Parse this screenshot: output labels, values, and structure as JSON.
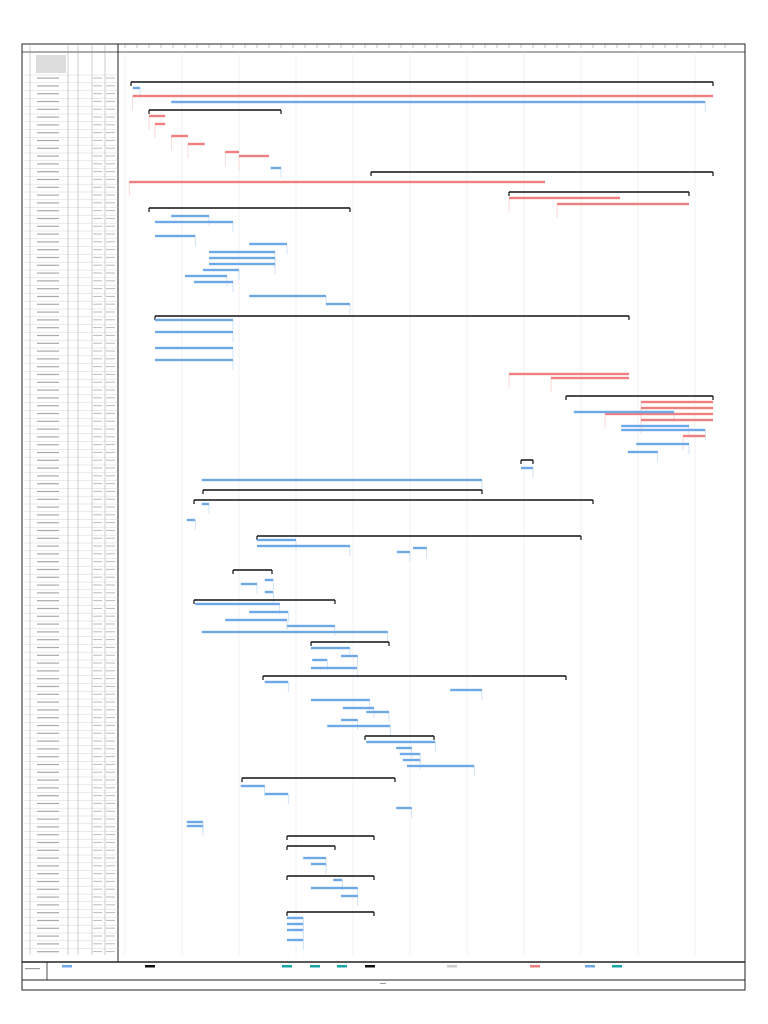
{
  "colors": {
    "summary": "#111111",
    "critical": "#f08080",
    "task": "#6fa8e8",
    "link_task": "#9fc6f0",
    "link_critical": "#f5b5b5",
    "grid": "#dddddd",
    "milestone_teal": "#1aa5a5"
  },
  "chart_data": {
    "type": "gantt",
    "xlim": [
      0,
      100
    ],
    "grid": true,
    "summary_bars": [
      [
        8.5,
        1,
        98
      ],
      [
        15.5,
        4,
        26
      ],
      [
        31,
        41,
        98
      ],
      [
        36,
        64,
        94
      ],
      [
        40,
        4,
        37.5
      ],
      [
        67,
        5,
        84
      ],
      [
        87,
        73.5,
        98
      ],
      [
        103,
        66,
        68
      ],
      [
        110.5,
        13,
        59.5
      ],
      [
        113,
        11.5,
        78
      ],
      [
        122,
        22,
        76
      ],
      [
        130.5,
        18,
        24.5
      ],
      [
        138,
        11.5,
        35
      ],
      [
        148.5,
        31,
        44
      ],
      [
        157,
        23,
        73.5
      ],
      [
        172,
        40,
        51.5
      ],
      [
        182.5,
        19.5,
        45
      ],
      [
        197,
        27,
        41.5
      ],
      [
        199.5,
        27,
        35
      ],
      [
        207,
        27,
        41.5
      ],
      [
        216,
        27,
        41.5
      ]
    ],
    "critical_bars": [
      [
        12,
        1.3,
        98
      ],
      [
        17,
        4,
        6.7
      ],
      [
        19,
        5,
        6.7
      ],
      [
        22,
        7.7,
        10.5
      ],
      [
        24,
        10.5,
        13.3
      ],
      [
        26,
        16.7,
        19
      ],
      [
        27,
        19,
        24
      ],
      [
        33.5,
        0.7,
        70
      ],
      [
        37.5,
        64,
        82.5
      ],
      [
        39,
        72,
        94
      ],
      [
        81.5,
        64,
        84
      ],
      [
        82.5,
        71,
        84
      ],
      [
        88.5,
        86,
        98
      ],
      [
        90,
        86,
        98
      ],
      [
        91.5,
        80,
        98
      ],
      [
        93,
        86,
        98
      ],
      [
        97,
        93,
        96.7
      ]
    ],
    "task_bars": [
      [
        10,
        1.3,
        2.5
      ],
      [
        13.5,
        7.7,
        96.7
      ],
      [
        30,
        24.3,
        26
      ],
      [
        42,
        7.7,
        14
      ],
      [
        43.5,
        5,
        18
      ],
      [
        47,
        5,
        11.7
      ],
      [
        49,
        20.7,
        27
      ],
      [
        51,
        14,
        25
      ],
      [
        52.5,
        14,
        25
      ],
      [
        54,
        14,
        25
      ],
      [
        55.5,
        13,
        19
      ],
      [
        57,
        10,
        17
      ],
      [
        58.5,
        11.5,
        18
      ],
      [
        62,
        20.7,
        33.5
      ],
      [
        64,
        33.5,
        37.5
      ],
      [
        68,
        5,
        18
      ],
      [
        71,
        5,
        18
      ],
      [
        75,
        5,
        18
      ],
      [
        78,
        5,
        18
      ],
      [
        91,
        74.8,
        91.5
      ],
      [
        94.5,
        82.7,
        94
      ],
      [
        95.5,
        82.7,
        96.7
      ],
      [
        99,
        85.2,
        94
      ],
      [
        101,
        83.8,
        88.8
      ],
      [
        105,
        66,
        68
      ],
      [
        108,
        12.8,
        59.5
      ],
      [
        114,
        12.8,
        14
      ],
      [
        118,
        10.3,
        11.7
      ],
      [
        123,
        22,
        28.5
      ],
      [
        124.5,
        22,
        37.5
      ],
      [
        126,
        45.3,
        47.5
      ],
      [
        125,
        48,
        50.3
      ],
      [
        134,
        19.3,
        22
      ],
      [
        133,
        23.3,
        24.7
      ],
      [
        136,
        23.3,
        24.7
      ],
      [
        139,
        11.7,
        25.8
      ],
      [
        141,
        20.7,
        27.2
      ],
      [
        143,
        16.7,
        27
      ],
      [
        144.5,
        27,
        35
      ],
      [
        146,
        12.8,
        43.8
      ],
      [
        150,
        31,
        37.5
      ],
      [
        152,
        36,
        38.8
      ],
      [
        153,
        31.2,
        33.7
      ],
      [
        155,
        31,
        38.7
      ],
      [
        158.5,
        23.3,
        27.2
      ],
      [
        160.5,
        54.2,
        59.5
      ],
      [
        163,
        31,
        40.8
      ],
      [
        165,
        36.3,
        41.5
      ],
      [
        166,
        40.2,
        44
      ],
      [
        168,
        36,
        38.8
      ],
      [
        169.5,
        33.7,
        44.2
      ],
      [
        173.5,
        40.2,
        51.7
      ],
      [
        175,
        45.2,
        47.8
      ],
      [
        176.5,
        45.8,
        49.2
      ],
      [
        178,
        46.3,
        49.2
      ],
      [
        179.5,
        47,
        58.2
      ],
      [
        184.5,
        19.3,
        23.3
      ],
      [
        186.5,
        23.3,
        27.2
      ],
      [
        190,
        45.2,
        47.8
      ],
      [
        193.5,
        10.3,
        13
      ],
      [
        194.5,
        10.3,
        13
      ],
      [
        202.5,
        29.7,
        33.5
      ],
      [
        204,
        31,
        33.5
      ],
      [
        208,
        34.7,
        36.2
      ],
      [
        210,
        31,
        38.8
      ],
      [
        212,
        36,
        38.8
      ],
      [
        217.5,
        27,
        29.7
      ],
      [
        219,
        27,
        29.7
      ],
      [
        220.5,
        27,
        29.7
      ],
      [
        223,
        27,
        29.7
      ]
    ]
  }
}
